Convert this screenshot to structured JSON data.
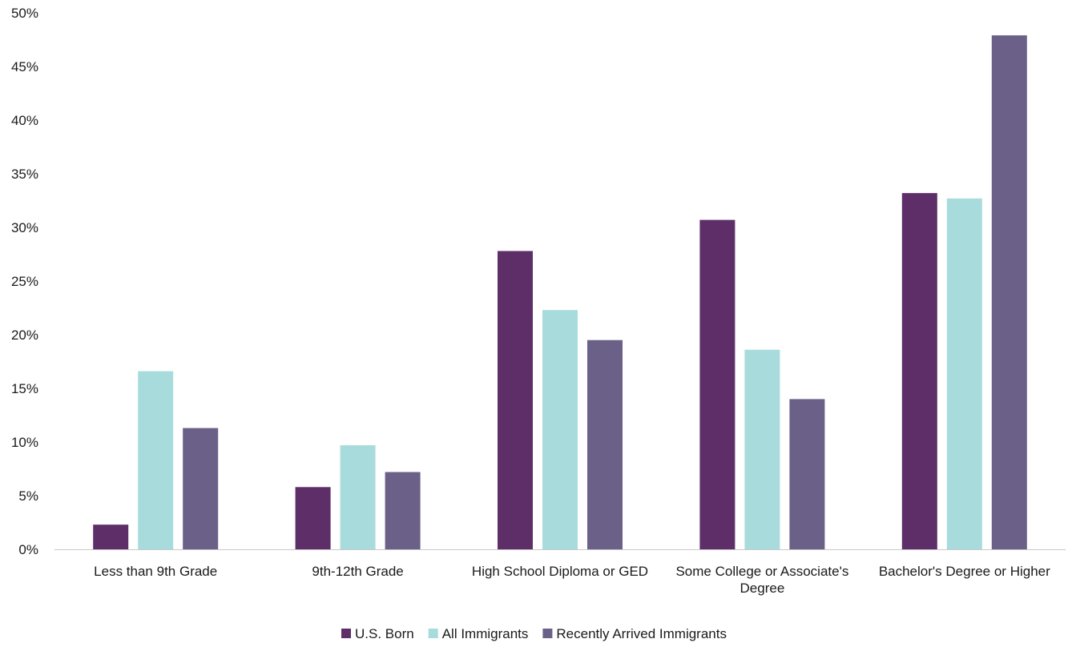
{
  "chart_data": {
    "type": "bar",
    "title": "",
    "xlabel": "",
    "ylabel": "",
    "ylim": [
      0,
      50
    ],
    "y_ticks": [
      0,
      5,
      10,
      15,
      20,
      25,
      30,
      35,
      40,
      45,
      50
    ],
    "y_tick_format": "percent",
    "grid": false,
    "legend_position": "bottom",
    "categories": [
      [
        "Less than 9th Grade"
      ],
      [
        "9th-12th Grade"
      ],
      [
        "High School Diploma or GED"
      ],
      [
        "Some College or Associate's",
        "Degree"
      ],
      [
        "Bachelor's Degree or Higher"
      ]
    ],
    "series": [
      {
        "name": "U.S. Born",
        "color": "#5e2e69",
        "values": [
          2.3,
          5.8,
          27.8,
          30.7,
          33.2
        ]
      },
      {
        "name": "All Immigrants",
        "color": "#a8dcdc",
        "values": [
          16.6,
          9.7,
          22.3,
          18.6,
          32.7
        ]
      },
      {
        "name": "Recently Arrived Immigrants",
        "color": "#6b6087",
        "values": [
          11.3,
          7.2,
          19.5,
          14.0,
          47.9
        ]
      }
    ]
  }
}
